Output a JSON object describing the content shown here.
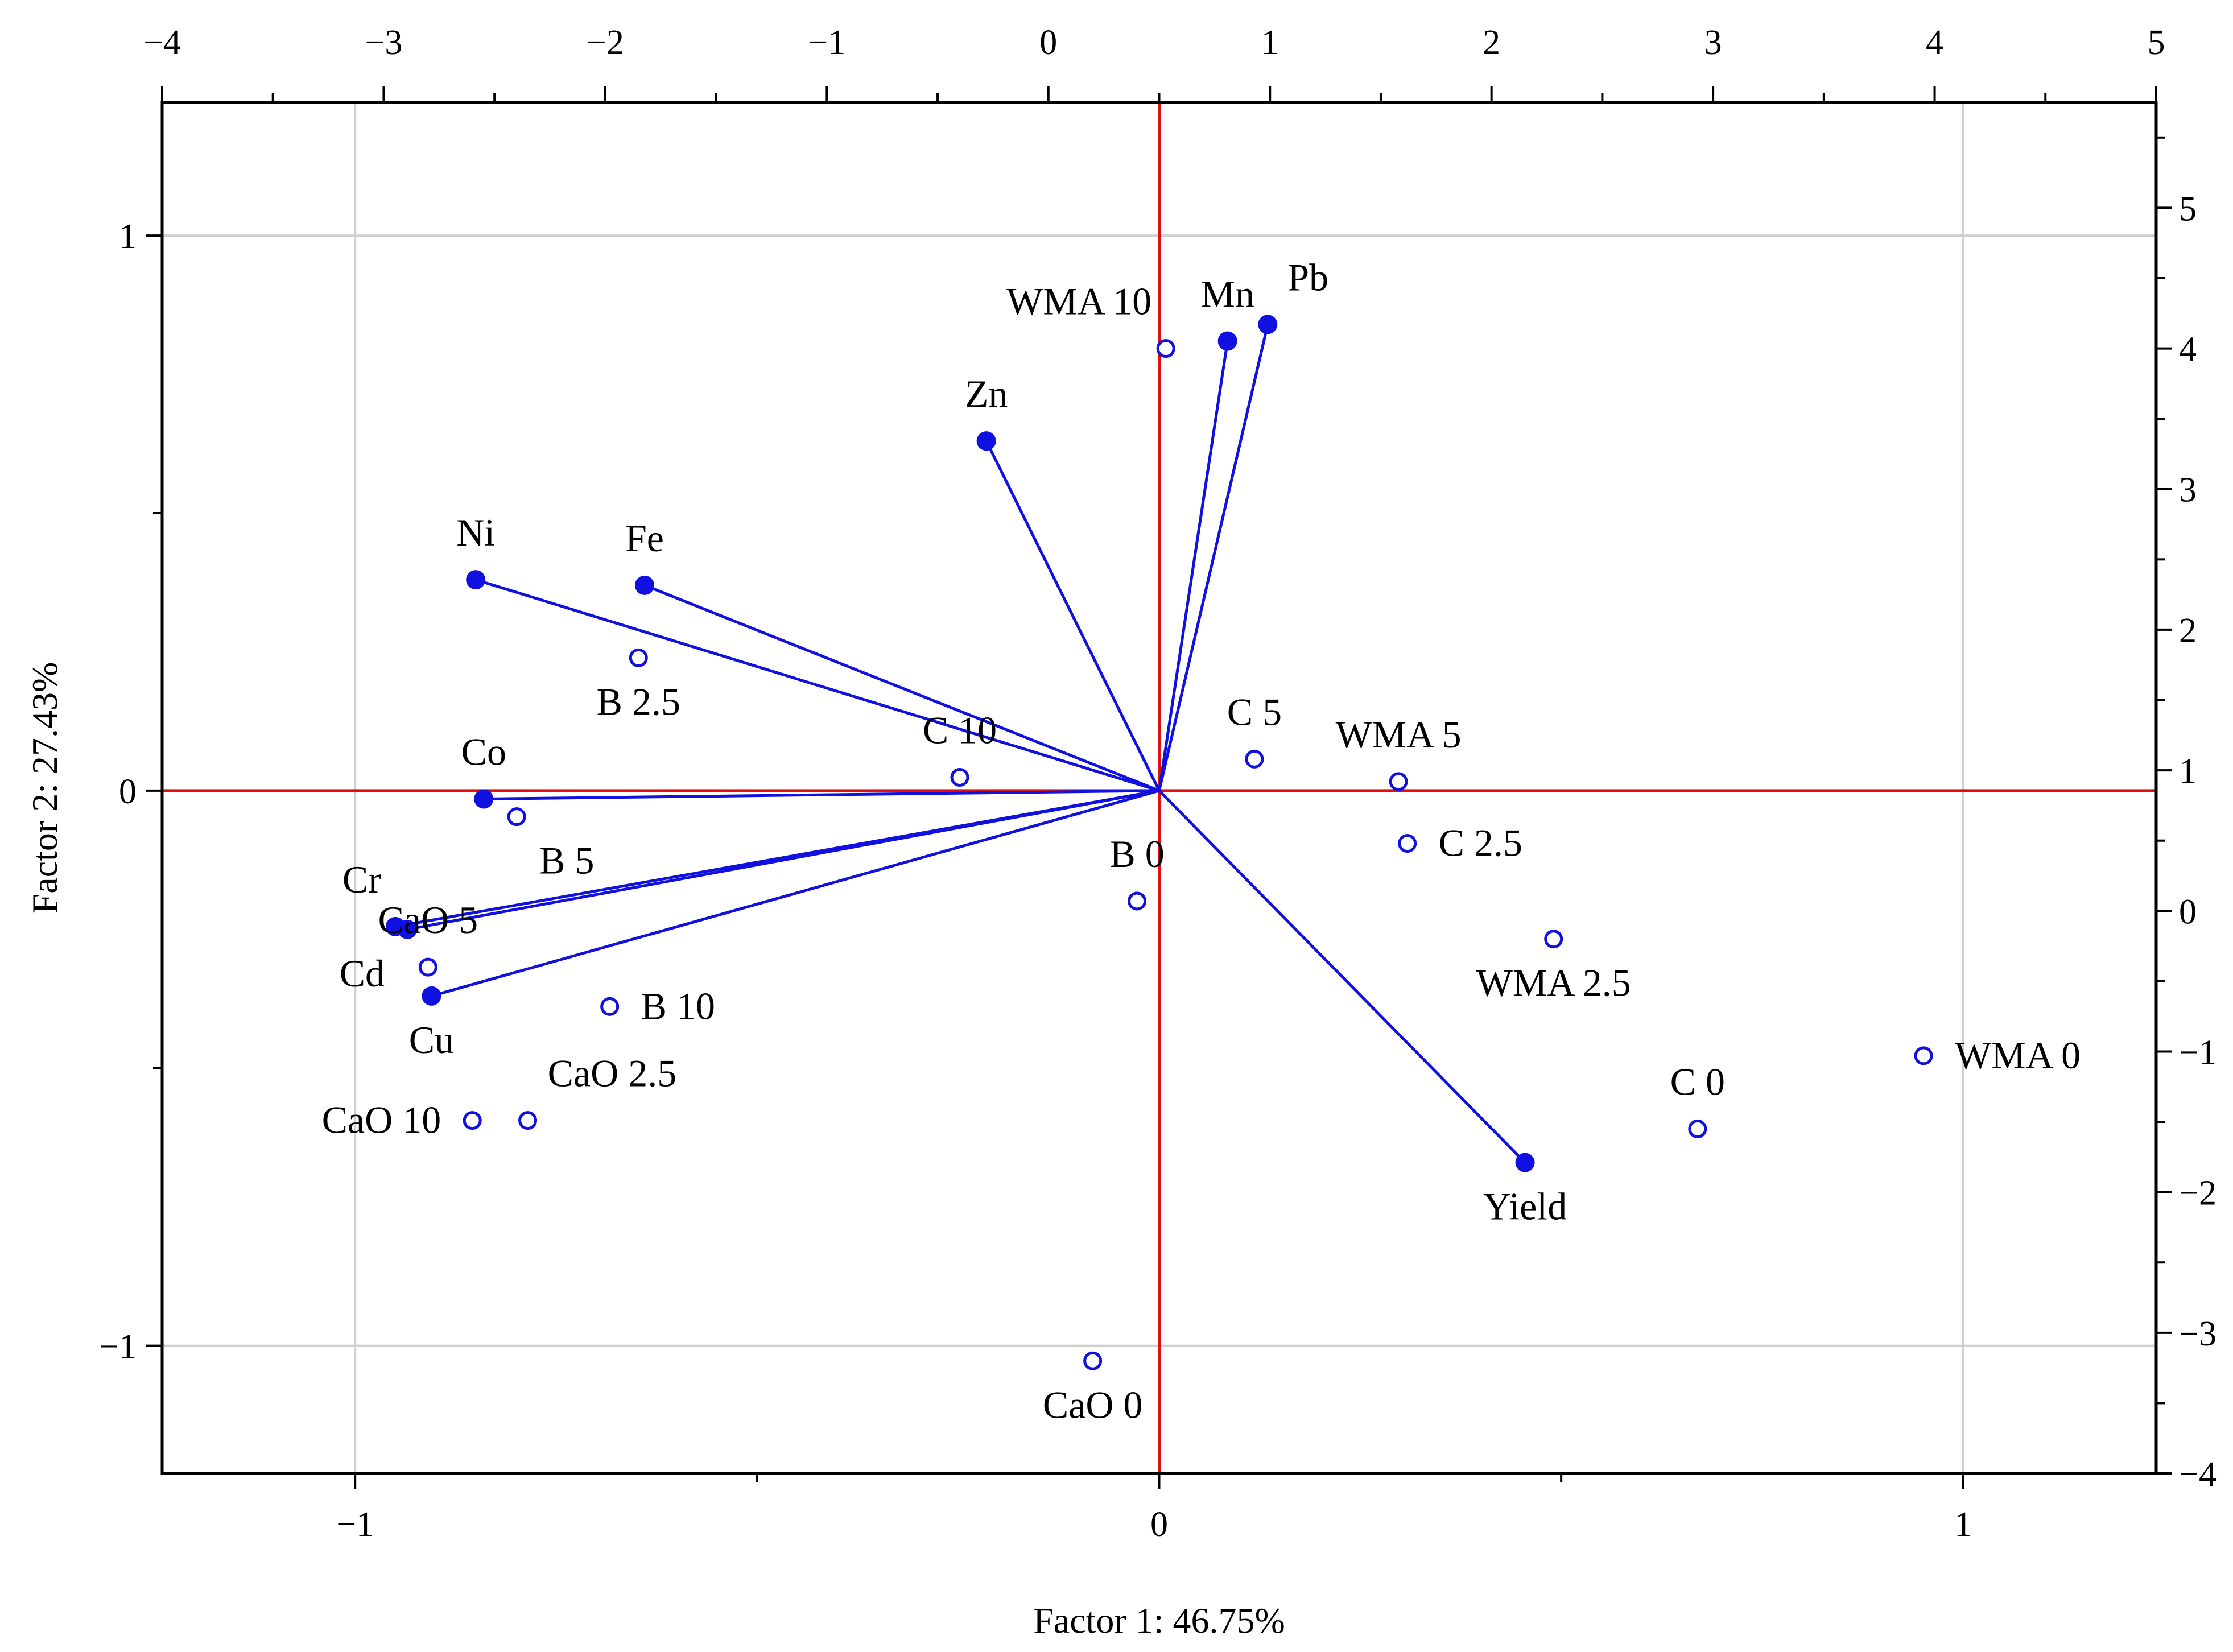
{
  "colors": {
    "vector": "#1010e0",
    "observation": "#1010e0",
    "zero_line": "#e01010",
    "grid": "#d0d0d0",
    "frame": "#000000"
  },
  "chart_data": {
    "type": "scatter",
    "subtype": "pca-biplot",
    "title": "",
    "xlabel": "Factor 1: 46.75%",
    "ylabel": "Factor 2: 27.43%",
    "grid": true,
    "axes": {
      "bottom": {
        "range": [
          -1.24,
          1.24
        ],
        "ticks": [
          -1,
          0,
          1
        ],
        "tick_labels": [
          "−1",
          "0",
          "1"
        ]
      },
      "left": {
        "range": [
          -1.23,
          1.24
        ],
        "ticks": [
          -1,
          0,
          1
        ],
        "tick_labels": [
          "−1",
          "0",
          "1"
        ]
      },
      "top": {
        "range": [
          -4,
          5
        ],
        "ticks": [
          -4,
          -3,
          -2,
          -1,
          0,
          1,
          2,
          3,
          4,
          5
        ],
        "tick_labels": [
          "−4",
          "−3",
          "−2",
          "−1",
          "0",
          "1",
          "2",
          "3",
          "4",
          "5"
        ]
      },
      "right": {
        "range": [
          -4,
          5.75
        ],
        "ticks": [
          -4,
          -3,
          -2,
          -1,
          0,
          1,
          2,
          3,
          4,
          5
        ],
        "tick_labels": [
          "−4",
          "−3",
          "−2",
          "−1",
          "0",
          "1",
          "2",
          "3",
          "4",
          "5"
        ]
      }
    },
    "series": [
      {
        "name": "variables",
        "kind": "vectors",
        "axes": [
          "bottom",
          "left"
        ],
        "points": [
          {
            "label": "Pb",
            "x": 0.135,
            "y": 0.84,
            "label_dir": "ne"
          },
          {
            "label": "Mn",
            "x": 0.085,
            "y": 0.81,
            "label_dir": "n"
          },
          {
            "label": "Zn",
            "x": -0.215,
            "y": 0.63,
            "label_dir": "n"
          },
          {
            "label": "Ni",
            "x": -0.85,
            "y": 0.38,
            "label_dir": "n"
          },
          {
            "label": "Fe",
            "x": -0.64,
            "y": 0.37,
            "label_dir": "n"
          },
          {
            "label": "Co",
            "x": -0.84,
            "y": -0.015,
            "label_dir": "n"
          },
          {
            "label": "Cr",
            "x": -0.95,
            "y": -0.245,
            "label_dir": "nw"
          },
          {
            "label": "Cd",
            "x": -0.935,
            "y": -0.25,
            "label_dir": "sw"
          },
          {
            "label": "Cu",
            "x": -0.905,
            "y": -0.37,
            "label_dir": "s"
          },
          {
            "label": "Yield",
            "x": 0.455,
            "y": -0.67,
            "label_dir": "s"
          }
        ]
      },
      {
        "name": "observations",
        "kind": "cases",
        "axes": [
          "top",
          "right"
        ],
        "points": [
          {
            "label": "WMA 10",
            "x": 0.53,
            "y": 4.0,
            "label_dir": "nw"
          },
          {
            "label": "B 2.5",
            "x": -1.85,
            "y": 1.8,
            "label_dir": "s"
          },
          {
            "label": "C 10",
            "x": -0.4,
            "y": 0.95,
            "label_dir": "n"
          },
          {
            "label": "C 5",
            "x": 0.93,
            "y": 1.08,
            "label_dir": "n"
          },
          {
            "label": "WMA 5",
            "x": 1.58,
            "y": 0.92,
            "label_dir": "n"
          },
          {
            "label": "B 5",
            "x": -2.4,
            "y": 0.67,
            "label_dir": "se"
          },
          {
            "label": "C 2.5",
            "x": 1.62,
            "y": 0.48,
            "label_dir": "e"
          },
          {
            "label": "B 0",
            "x": 0.4,
            "y": 0.07,
            "label_dir": "n"
          },
          {
            "label": "WMA 2.5",
            "x": 2.28,
            "y": -0.2,
            "label_dir": "s"
          },
          {
            "label": "CaO 5",
            "x": -2.8,
            "y": -0.4,
            "label_dir": "n"
          },
          {
            "label": "B 10",
            "x": -1.98,
            "y": -0.68,
            "label_dir": "e"
          },
          {
            "label": "WMA 0",
            "x": 3.95,
            "y": -1.03,
            "label_dir": "e"
          },
          {
            "label": "C 0",
            "x": 2.93,
            "y": -1.55,
            "label_dir": "n"
          },
          {
            "label": "CaO 10",
            "x": -2.6,
            "y": -1.49,
            "label_dir": "w"
          },
          {
            "label": "CaO 2.5",
            "x": -2.35,
            "y": -1.49,
            "label_dir": "ne"
          },
          {
            "label": "CaO 0",
            "x": 0.2,
            "y": -3.2,
            "label_dir": "s"
          }
        ]
      }
    ]
  }
}
